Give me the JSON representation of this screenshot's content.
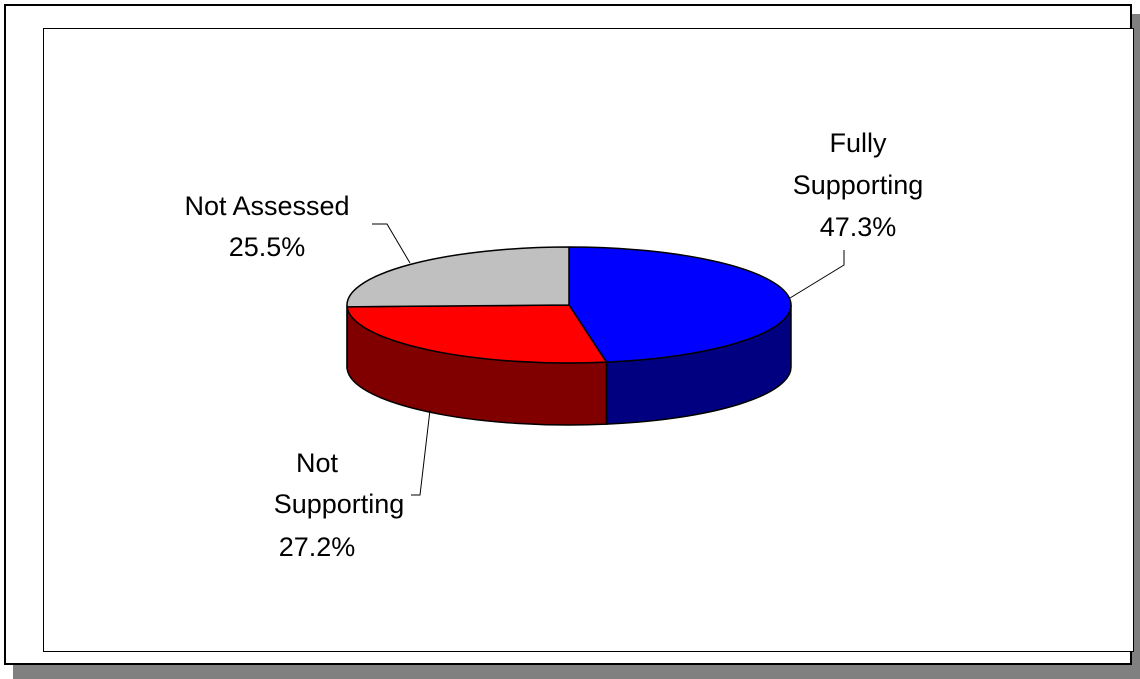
{
  "chart_data": {
    "type": "pie",
    "style": "3d-exploded-none",
    "slices": [
      {
        "label": "Fully Supporting",
        "label_lines": [
          "Fully",
          "Supporting"
        ],
        "value_text": "47.3%",
        "value": 47.3,
        "color": "#0000ff",
        "side_color": "#000080"
      },
      {
        "label": "Not Supporting",
        "label_lines": [
          "Not",
          "Supporting"
        ],
        "value_text": "27.2%",
        "value": 27.2,
        "color": "#ff0000",
        "side_color": "#800000"
      },
      {
        "label": "Not Assessed",
        "label_lines": [
          "Not Assessed"
        ],
        "value_text": "25.5%",
        "value": 25.5,
        "color": "#c0c0c0",
        "side_color": "#808080"
      }
    ],
    "legend": "none",
    "title": ""
  }
}
